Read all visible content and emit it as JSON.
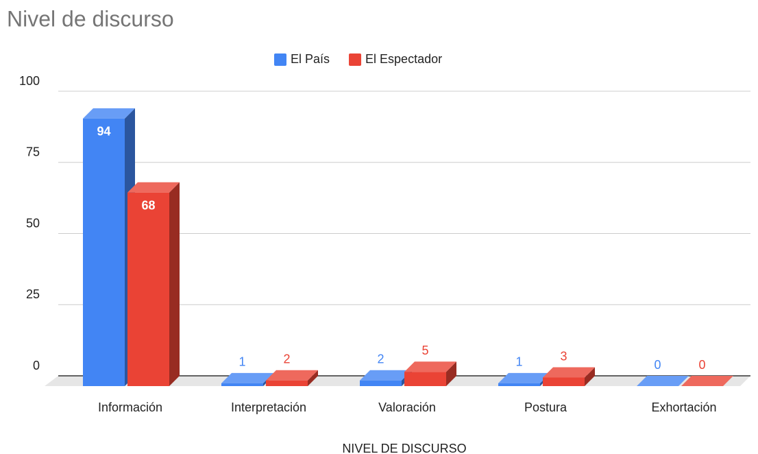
{
  "chart_data": {
    "type": "bar3d",
    "title": "Nivel de discurso",
    "x_label": "NIVEL DE DISCURSO",
    "categories": [
      "Información",
      "Interpretación",
      "Valoración",
      "Postura",
      "Exhortación"
    ],
    "series": [
      {
        "name": "El País",
        "color": "#4285f4",
        "values": [
          94,
          1,
          2,
          1,
          0
        ]
      },
      {
        "name": "El Espectador",
        "color": "#ea4335",
        "values": [
          68,
          2,
          5,
          3,
          0
        ]
      }
    ],
    "ylim": [
      0,
      100
    ],
    "yticks": [
      0,
      25,
      50,
      75,
      100
    ],
    "grid": true,
    "legend": "top"
  }
}
